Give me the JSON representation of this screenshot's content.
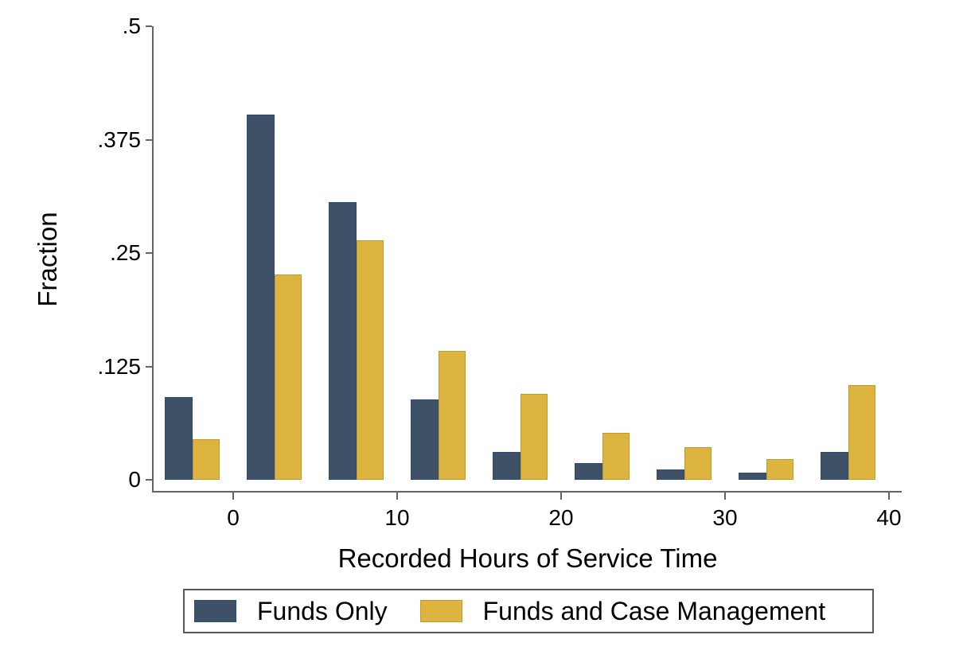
{
  "figure": {
    "xlabel": "Recorded Hours of Service Time",
    "ylabel": "Fraction"
  },
  "colors": {
    "axis": "#636363",
    "text": "#000000",
    "background": "#ffffff",
    "legend_border": "#58585a",
    "funds_only_fill": "#3e5166",
    "funds_only_border": "#2e4d74",
    "funds_case_fill": "#ddb43f",
    "funds_case_border": "#c1992f"
  },
  "chart_data": {
    "type": "bar",
    "title": "",
    "xlabel": "Recorded Hours of Service Time",
    "ylabel": "Fraction",
    "grid": false,
    "legend_position": "bottom",
    "xlim": [
      -4.85,
      40.8
    ],
    "ylim": [
      0,
      0.5
    ],
    "x_ticks": [
      0,
      10,
      20,
      30,
      40
    ],
    "x_tick_labels": [
      "0",
      "10",
      "20",
      "30",
      "40"
    ],
    "y_ticks": [
      0,
      0.125,
      0.25,
      0.375,
      0.5
    ],
    "y_tick_labels": [
      "0",
      ".125",
      ".25",
      ".375",
      ".5"
    ],
    "bin_width": 5,
    "bin_centers": [
      -2.5,
      2.5,
      7.5,
      12.5,
      17.5,
      22.5,
      27.5,
      32.5,
      37.5
    ],
    "series": [
      {
        "name": "Funds Only",
        "fill": "#3e5166",
        "border": "#2e4d74",
        "values": [
          0.091,
          0.403,
          0.306,
          0.089,
          0.031,
          0.018,
          0.011,
          0.008,
          0.031
        ]
      },
      {
        "name": "Funds and Case Management",
        "fill": "#ddb43f",
        "border": "#c1992f",
        "values": [
          0.045,
          0.226,
          0.264,
          0.142,
          0.095,
          0.052,
          0.036,
          0.023,
          0.104
        ]
      }
    ]
  }
}
